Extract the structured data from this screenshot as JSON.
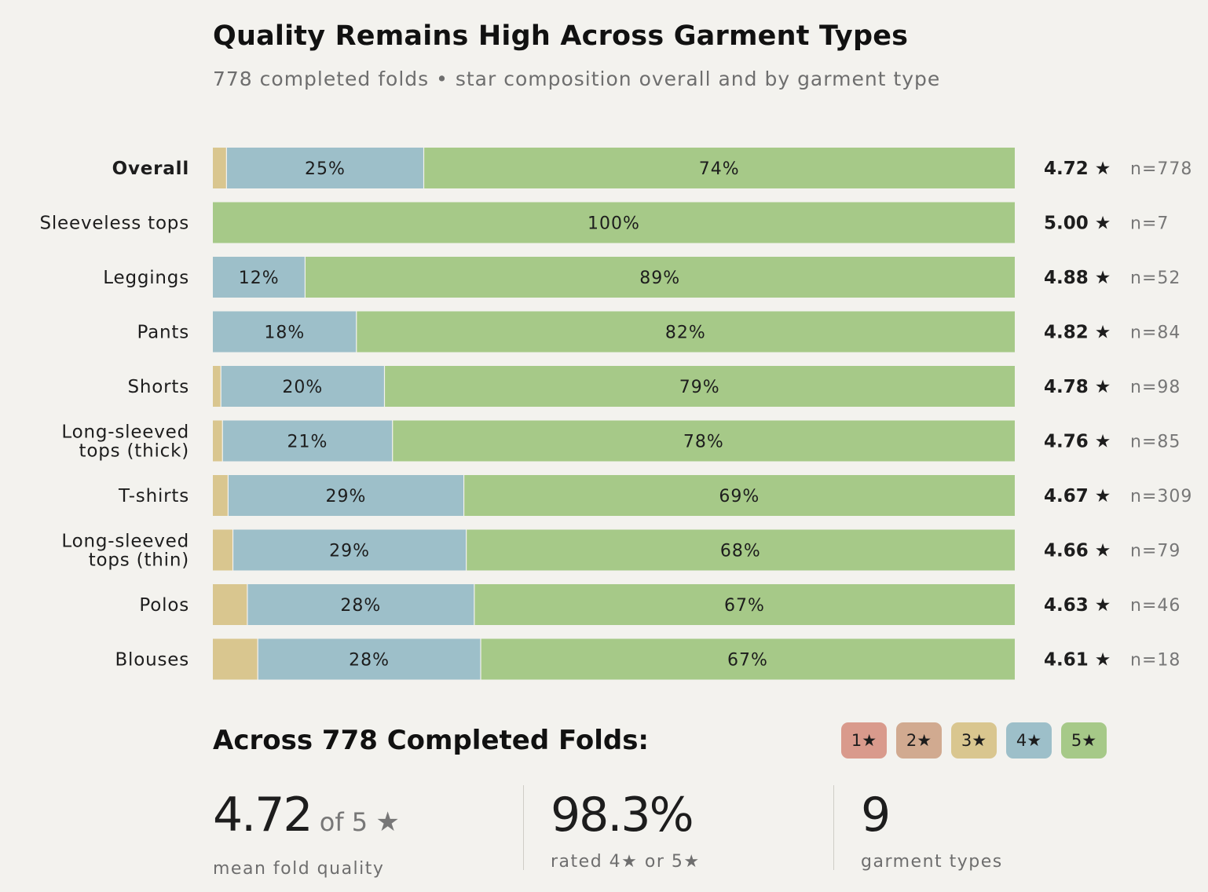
{
  "title": "Quality Remains High Across Garment Types",
  "subtitle": "778 completed folds • star composition overall and by garment type",
  "colors": {
    "1": "#d99a8c",
    "2": "#d1aa90",
    "3": "#d9c68f",
    "4": "#9dbfc9",
    "5": "#a6c988",
    "background": "#f3f2ee"
  },
  "chart_data": {
    "type": "bar",
    "orientation": "horizontal",
    "stacked": true,
    "normalized_percent": true,
    "xlim": [
      0,
      100
    ],
    "series_order": [
      "1★",
      "2★",
      "3★",
      "4★",
      "5★"
    ],
    "rows": [
      {
        "label": "Overall",
        "bold": true,
        "values": [
          0,
          0,
          1.7,
          24.6,
          73.7
        ],
        "labels": [
          "",
          "",
          "",
          "25%",
          "74%"
        ],
        "mean": "4.72",
        "n": "n=778"
      },
      {
        "label": "Sleeveless tops",
        "values": [
          0,
          0,
          0,
          0,
          100
        ],
        "labels": [
          "",
          "",
          "",
          "",
          "100%"
        ],
        "mean": "5.00",
        "n": "n=7"
      },
      {
        "label": "Leggings",
        "values": [
          0,
          0,
          0,
          11.5,
          88.5
        ],
        "labels": [
          "",
          "",
          "",
          "12%",
          "89%"
        ],
        "mean": "4.88",
        "n": "n=52"
      },
      {
        "label": "Pants",
        "values": [
          0,
          0,
          0,
          17.9,
          82.1
        ],
        "labels": [
          "",
          "",
          "",
          "18%",
          "82%"
        ],
        "mean": "4.82",
        "n": "n=84"
      },
      {
        "label": "Shorts",
        "values": [
          0,
          0,
          1.0,
          20.4,
          78.6
        ],
        "labels": [
          "",
          "",
          "",
          "20%",
          "79%"
        ],
        "mean": "4.78",
        "n": "n=98"
      },
      {
        "label": "Long-sleeved\ntops (thick)",
        "values": [
          0,
          0,
          1.2,
          21.2,
          77.6
        ],
        "labels": [
          "",
          "",
          "",
          "21%",
          "78%"
        ],
        "mean": "4.76",
        "n": "n=85"
      },
      {
        "label": "T-shirts",
        "values": [
          0,
          0,
          1.9,
          29.4,
          68.7
        ],
        "labels": [
          "",
          "",
          "",
          "29%",
          "69%"
        ],
        "mean": "4.67",
        "n": "n=309"
      },
      {
        "label": "Long-sleeved\ntops (thin)",
        "values": [
          0,
          0,
          2.5,
          29.1,
          68.4
        ],
        "labels": [
          "",
          "",
          "",
          "29%",
          "68%"
        ],
        "mean": "4.66",
        "n": "n=79"
      },
      {
        "label": "Polos",
        "values": [
          0,
          0,
          4.3,
          28.3,
          67.4
        ],
        "labels": [
          "",
          "",
          "",
          "28%",
          "67%"
        ],
        "mean": "4.63",
        "n": "n=46"
      },
      {
        "label": "Blouses",
        "values": [
          0,
          0,
          5.6,
          27.8,
          66.6
        ],
        "labels": [
          "",
          "",
          "",
          "28%",
          "67%"
        ],
        "mean": "4.61",
        "n": "n=18"
      }
    ]
  },
  "summary": {
    "title": "Across 778 Completed Folds:",
    "legend": [
      "1★",
      "2★",
      "3★",
      "4★",
      "5★"
    ],
    "stats": [
      {
        "value": "4.72",
        "suffix": "of 5",
        "star": "★",
        "label": "mean fold quality"
      },
      {
        "value": "98.3%",
        "label": "rated 4★ or 5★"
      },
      {
        "value": "9",
        "label": "garment types"
      }
    ]
  }
}
